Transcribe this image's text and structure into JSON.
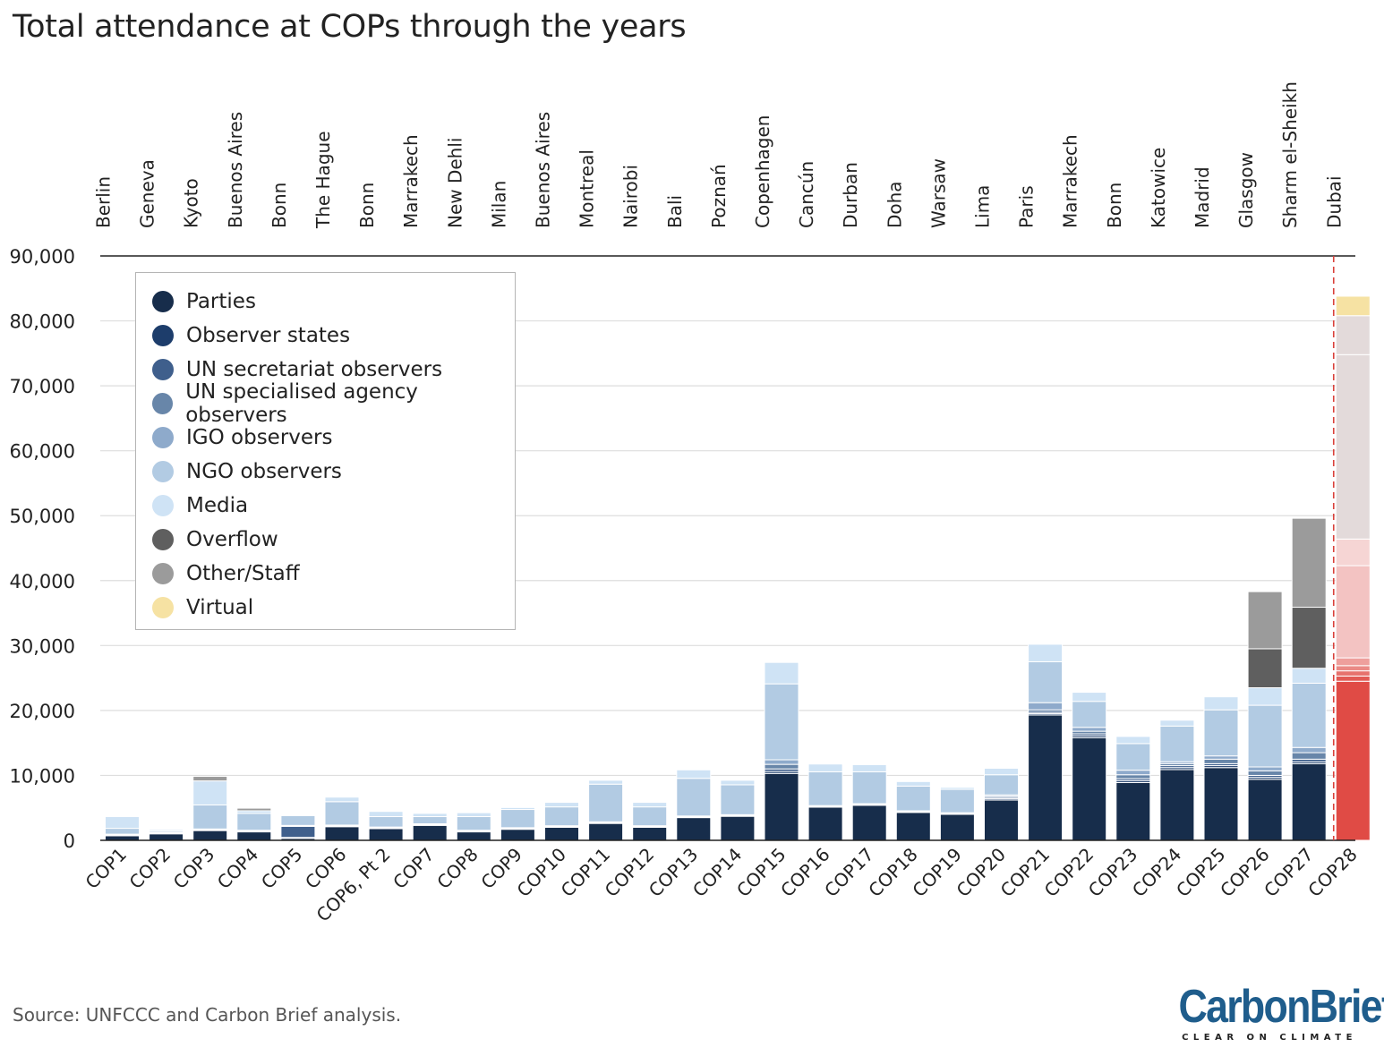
{
  "title": "Total attendance at COPs through the years",
  "source": "Source: UNFCCC and Carbon Brief analysis.",
  "logo": {
    "name": "CarbonBrief",
    "tagline": "CLEAR ON CLIMATE"
  },
  "legend": [
    {
      "key": "parties",
      "label": "Parties",
      "color": "#172d4b"
    },
    {
      "key": "observer_states",
      "label": "Observer states",
      "color": "#1d3d6b"
    },
    {
      "key": "un_secretariat",
      "label": "UN secretariat observers",
      "color": "#3f5f8c"
    },
    {
      "key": "un_agency",
      "label": "UN specialised agency observers",
      "color": "#6886a9"
    },
    {
      "key": "igo",
      "label": "IGO observers",
      "color": "#8eaacb"
    },
    {
      "key": "ngo",
      "label": "NGO observers",
      "color": "#b2cbe3"
    },
    {
      "key": "media",
      "label": "Media",
      "color": "#cfe3f5"
    },
    {
      "key": "overflow",
      "label": "Overflow",
      "color": "#5f5f5f"
    },
    {
      "key": "other_staff",
      "label": "Other/Staff",
      "color": "#9b9b9b"
    },
    {
      "key": "virtual",
      "label": "Virtual",
      "color": "#f6e2a3"
    }
  ],
  "chart_data": {
    "type": "bar",
    "stacked": true,
    "title": "Total attendance at COPs through the years",
    "xlabel": "",
    "ylabel": "",
    "ylim": [
      0,
      90000
    ],
    "yticks": [
      0,
      10000,
      20000,
      30000,
      40000,
      50000,
      60000,
      70000,
      80000,
      90000
    ],
    "ytick_labels": [
      "0",
      "10,000",
      "20,000",
      "30,000",
      "40,000",
      "50,000",
      "60,000",
      "70,000",
      "80,000",
      "90,000"
    ],
    "grid": true,
    "legend_position": "top-left",
    "highlight": {
      "category": "COP28",
      "colors": [
        "#e04b45",
        "#e25a54",
        "#e7726d",
        "#ea8a86",
        "#ee9f9c",
        "#f3c3c2",
        "#f6d5d4",
        "#e3dada",
        "#e3dada",
        "#f6e2a3"
      ]
    },
    "categories": [
      "COP1",
      "COP2",
      "COP3",
      "COP4",
      "COP5",
      "COP6",
      "COP6, Pt 2",
      "COP7",
      "COP8",
      "COP9",
      "COP10",
      "COP11",
      "COP12",
      "COP13",
      "COP14",
      "COP15",
      "COP16",
      "COP17",
      "COP18",
      "COP19",
      "COP20",
      "COP21",
      "COP22",
      "COP23",
      "COP24",
      "COP25",
      "COP26",
      "COP27",
      "COP28"
    ],
    "locations": [
      "Berlin",
      "Geneva",
      "Kyoto",
      "Buenos Aires",
      "Bonn",
      "The Hague",
      "Bonn",
      "Marrakech",
      "New Dehli",
      "Milan",
      "Buenos Aires",
      "Montreal",
      "Nairobi",
      "Bali",
      "Poznań",
      "Copenhagen",
      "Cancún",
      "Durban",
      "Doha",
      "Warsaw",
      "Lima",
      "Paris",
      "Marrakech",
      "Bonn",
      "Katowice",
      "Madrid",
      "Glasgow",
      "Sharm el-Sheikh",
      "Dubai"
    ],
    "series": [
      {
        "name": "Parties",
        "values": [
          700,
          1000,
          1500,
          1300,
          300,
          2100,
          1800,
          2300,
          1300,
          1700,
          2000,
          2600,
          2000,
          3500,
          3700,
          10300,
          5100,
          5400,
          4300,
          4000,
          6200,
          19300,
          15800,
          8900,
          10900,
          11200,
          9400,
          11800,
          24500
        ]
      },
      {
        "name": "Observer states",
        "values": [
          50,
          50,
          50,
          50,
          150,
          50,
          50,
          50,
          50,
          50,
          50,
          50,
          50,
          50,
          50,
          300,
          50,
          50,
          50,
          50,
          200,
          200,
          300,
          300,
          300,
          300,
          300,
          300,
          800
        ]
      },
      {
        "name": "UN secretariat observers",
        "values": [
          50,
          50,
          50,
          50,
          1700,
          50,
          50,
          50,
          50,
          50,
          50,
          50,
          50,
          50,
          50,
          400,
          50,
          50,
          50,
          50,
          200,
          200,
          300,
          300,
          300,
          300,
          300,
          400,
          800
        ]
      },
      {
        "name": "UN specialised agency observers",
        "values": [
          50,
          50,
          50,
          50,
          50,
          50,
          50,
          50,
          50,
          50,
          50,
          50,
          50,
          50,
          50,
          700,
          50,
          50,
          50,
          50,
          200,
          400,
          400,
          600,
          300,
          700,
          700,
          1000,
          800
        ]
      },
      {
        "name": "IGO observers",
        "values": [
          100,
          100,
          100,
          100,
          100,
          100,
          100,
          100,
          100,
          100,
          100,
          100,
          100,
          100,
          100,
          700,
          100,
          100,
          100,
          100,
          200,
          1100,
          600,
          700,
          300,
          500,
          600,
          800,
          1200
        ]
      },
      {
        "name": "NGO observers",
        "values": [
          900,
          200,
          3700,
          2600,
          1500,
          3600,
          1600,
          1100,
          2100,
          2800,
          2900,
          5800,
          2900,
          5800,
          4600,
          11700,
          5200,
          4900,
          3800,
          3600,
          3100,
          6300,
          4000,
          4100,
          5500,
          7100,
          9500,
          9900,
          14200
        ]
      },
      {
        "name": "Media",
        "values": [
          1800,
          200,
          3700,
          400,
          100,
          700,
          800,
          500,
          600,
          300,
          700,
          600,
          700,
          1300,
          700,
          3300,
          1200,
          1100,
          700,
          300,
          1000,
          2700,
          1400,
          1100,
          900,
          2000,
          2700,
          2300,
          4100
        ]
      },
      {
        "name": "Overflow",
        "values": [
          0,
          0,
          0,
          0,
          0,
          0,
          0,
          0,
          0,
          0,
          0,
          0,
          0,
          0,
          0,
          0,
          0,
          0,
          0,
          0,
          0,
          0,
          0,
          0,
          0,
          0,
          6000,
          9400,
          28400
        ]
      },
      {
        "name": "Other/Staff",
        "values": [
          0,
          0,
          700,
          400,
          0,
          0,
          0,
          0,
          0,
          0,
          0,
          0,
          0,
          0,
          0,
          0,
          0,
          0,
          0,
          0,
          0,
          0,
          0,
          0,
          0,
          0,
          8800,
          13700,
          6000
        ]
      },
      {
        "name": "Virtual",
        "values": [
          0,
          0,
          0,
          0,
          0,
          0,
          0,
          0,
          0,
          0,
          0,
          0,
          0,
          0,
          0,
          0,
          0,
          0,
          0,
          0,
          0,
          0,
          0,
          0,
          0,
          0,
          0,
          0,
          3000
        ]
      }
    ]
  }
}
